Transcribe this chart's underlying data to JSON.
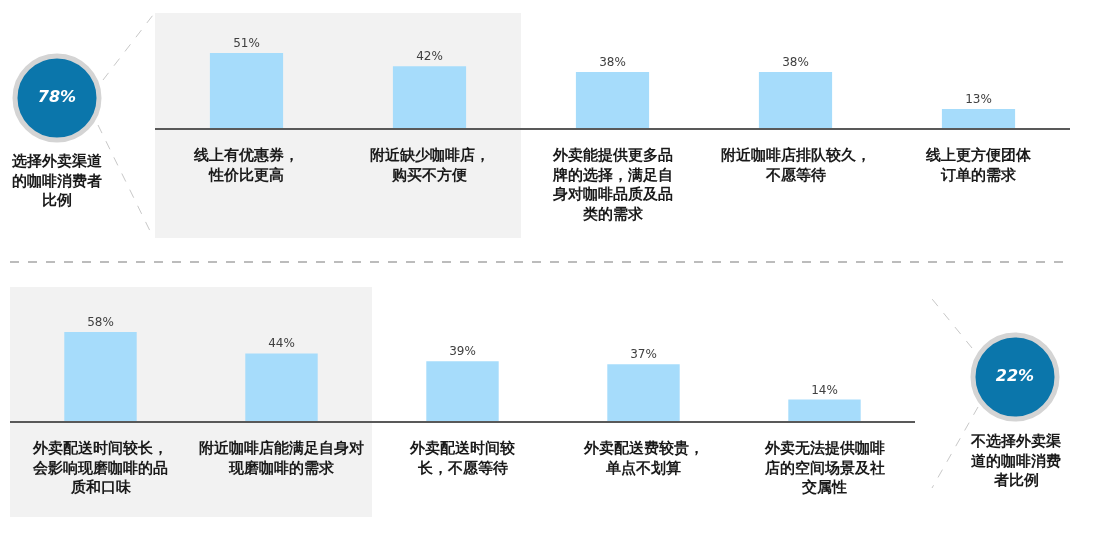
{
  "chart_data": [
    {
      "type": "other",
      "values": [
        78
      ],
      "value_labels": [
        "78%"
      ],
      "color": "#0b76ab",
      "annotations": [
        "选择外卖渠道的咖啡消费者比例"
      ]
    },
    {
      "type": "bar",
      "categories": [
        "线上有优惠券，性价比更高",
        "附近缺少咖啡店，购买不方便",
        "外卖能提供更多品牌的选择，满足自身对咖啡品质及品类的需求",
        "附近咖啡店排队较久，不愿等待",
        "线上更方便团体订单的需求"
      ],
      "values": [
        51,
        42,
        38,
        38,
        13
      ],
      "value_labels": [
        "51%",
        "42%",
        "38%",
        "38%",
        "13%"
      ],
      "color": "#a6dcfb",
      "tick_labels": "x",
      "bands": [
        {
          "axis": "x",
          "from": "线上有优惠券，性价比更高",
          "to": "附近缺少咖啡店，购买不方便",
          "color": "#f2f2f2"
        }
      ]
    },
    {
      "type": "bar",
      "categories": [
        "外卖配送时间较长，会影响现磨咖啡的品质和口味",
        "附近咖啡店能满足自身对现磨咖啡的需求",
        "外卖配送时间较长，不愿等待",
        "外卖配送费较贵，单点不划算",
        "外卖无法提供咖啡店的空间场景及社交属性"
      ],
      "values": [
        58,
        44,
        39,
        37,
        14
      ],
      "value_labels": [
        "58%",
        "44%",
        "39%",
        "37%",
        "14%"
      ],
      "color": "#a6dcfb",
      "tick_labels": "x",
      "bands": [
        {
          "axis": "x",
          "from": "外卖配送时间较长，会影响现磨咖啡的品质和口味",
          "to": "附近咖啡店能满足自身对现磨咖啡的需求",
          "color": "#f2f2f2"
        }
      ]
    },
    {
      "type": "other",
      "values": [
        22
      ],
      "value_labels": [
        "22%"
      ],
      "color": "#0b76ab",
      "annotations": [
        "不选择外卖渠道的咖啡消费者比例"
      ]
    }
  ]
}
